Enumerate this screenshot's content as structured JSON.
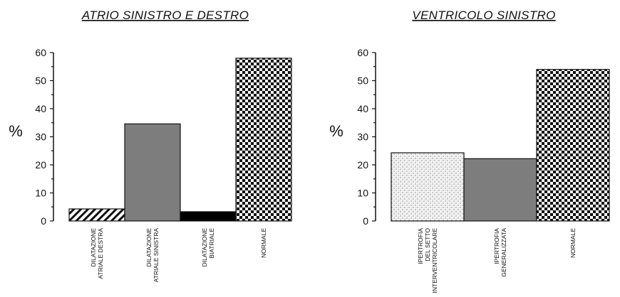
{
  "chart_data": [
    {
      "type": "bar",
      "title": "ATRIO  SINISTRO  E  DESTRO",
      "ylabel": "%",
      "ylim": [
        0,
        60
      ],
      "yticks": [
        0,
        10,
        20,
        30,
        40,
        50,
        60
      ],
      "grid": false,
      "categories": [
        [
          "DILATAZIONE",
          "ATRIALE DESTRA"
        ],
        [
          "DILATAZIONE",
          "ATRIALE SINISTRA"
        ],
        [
          "DILATAZIONE",
          "BIATRIALE"
        ],
        [
          "NORMALE"
        ]
      ],
      "values": [
        4.3,
        34.6,
        3.3,
        58
      ],
      "patterns": [
        "hatch",
        "gray",
        "black",
        "checker"
      ]
    },
    {
      "type": "bar",
      "title": "VENTRICOLO  SINISTRO",
      "ylabel": "%",
      "ylim": [
        0,
        60
      ],
      "yticks": [
        0,
        10,
        20,
        30,
        40,
        50,
        60
      ],
      "grid": false,
      "categories": [
        [
          "IPERTROFIA",
          "DEL SETTO",
          "INTERVENTRICOLARE"
        ],
        [
          "IPERTROFIA",
          "GENERALIZZATA"
        ],
        [
          "NORMALE"
        ]
      ],
      "values": [
        24.3,
        22.2,
        54
      ],
      "patterns": [
        "dots",
        "gray",
        "checker"
      ]
    }
  ]
}
